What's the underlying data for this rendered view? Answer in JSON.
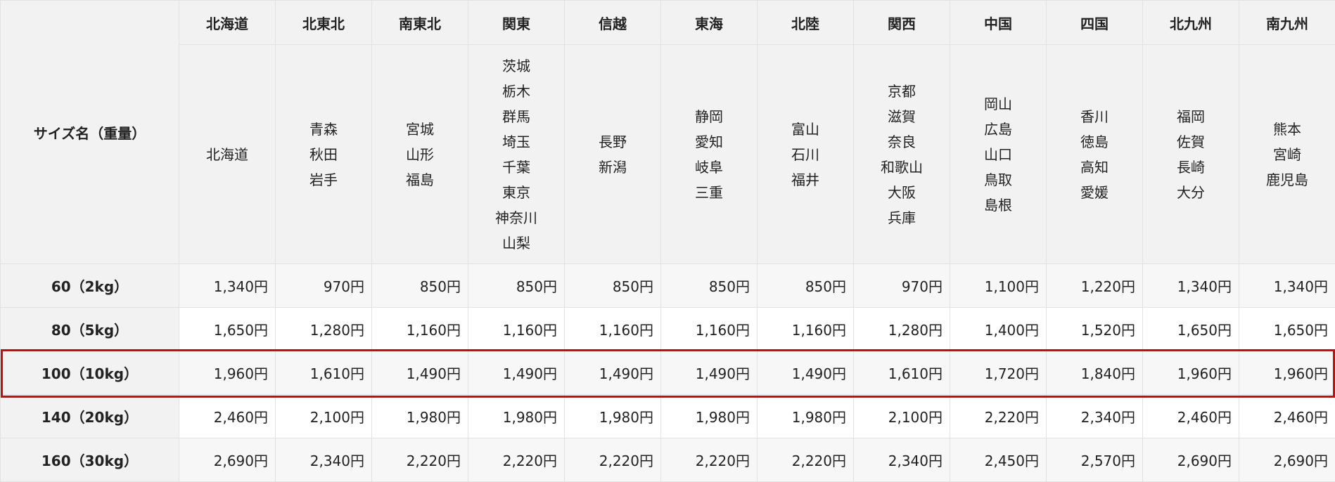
{
  "table": {
    "size_header": "サイズ名（重量）",
    "regions": [
      {
        "name": "北海道",
        "prefectures": [
          "北海道"
        ]
      },
      {
        "name": "北東北",
        "prefectures": [
          "青森",
          "秋田",
          "岩手"
        ]
      },
      {
        "name": "南東北",
        "prefectures": [
          "宮城",
          "山形",
          "福島"
        ]
      },
      {
        "name": "関東",
        "prefectures": [
          "茨城",
          "栃木",
          "群馬",
          "埼玉",
          "千葉",
          "東京",
          "神奈川",
          "山梨"
        ]
      },
      {
        "name": "信越",
        "prefectures": [
          "長野",
          "新潟"
        ]
      },
      {
        "name": "東海",
        "prefectures": [
          "静岡",
          "愛知",
          "岐阜",
          "三重"
        ]
      },
      {
        "name": "北陸",
        "prefectures": [
          "富山",
          "石川",
          "福井"
        ]
      },
      {
        "name": "関西",
        "prefectures": [
          "京都",
          "滋賀",
          "奈良",
          "和歌山",
          "大阪",
          "兵庫"
        ]
      },
      {
        "name": "中国",
        "prefectures": [
          "岡山",
          "広島",
          "山口",
          "鳥取",
          "島根"
        ]
      },
      {
        "name": "四国",
        "prefectures": [
          "香川",
          "徳島",
          "高知",
          "愛媛"
        ]
      },
      {
        "name": "北九州",
        "prefectures": [
          "福岡",
          "佐賀",
          "長崎",
          "大分"
        ]
      },
      {
        "name": "南九州",
        "prefectures": [
          "熊本",
          "宮崎",
          "鹿児島"
        ]
      }
    ],
    "rows": [
      {
        "size": "60（2kg）",
        "prices": [
          "1,340円",
          "970円",
          "850円",
          "850円",
          "850円",
          "850円",
          "850円",
          "970円",
          "1,100円",
          "1,220円",
          "1,340円",
          "1,340円"
        ]
      },
      {
        "size": "80（5kg）",
        "prices": [
          "1,650円",
          "1,280円",
          "1,160円",
          "1,160円",
          "1,160円",
          "1,160円",
          "1,160円",
          "1,280円",
          "1,400円",
          "1,520円",
          "1,650円",
          "1,650円"
        ]
      },
      {
        "size": "100（10kg）",
        "prices": [
          "1,960円",
          "1,610円",
          "1,490円",
          "1,490円",
          "1,490円",
          "1,490円",
          "1,490円",
          "1,610円",
          "1,720円",
          "1,840円",
          "1,960円",
          "1,960円"
        ],
        "highlighted": true
      },
      {
        "size": "140（20kg）",
        "prices": [
          "2,460円",
          "2,100円",
          "1,980円",
          "1,980円",
          "1,980円",
          "1,980円",
          "1,980円",
          "2,100円",
          "2,220円",
          "2,340円",
          "2,460円",
          "2,460円"
        ]
      },
      {
        "size": "160（30kg）",
        "prices": [
          "2,690円",
          "2,340円",
          "2,220円",
          "2,220円",
          "2,220円",
          "2,220円",
          "2,220円",
          "2,340円",
          "2,450円",
          "2,570円",
          "2,690円",
          "2,690円"
        ]
      }
    ],
    "highlight_color": "#e60000"
  }
}
